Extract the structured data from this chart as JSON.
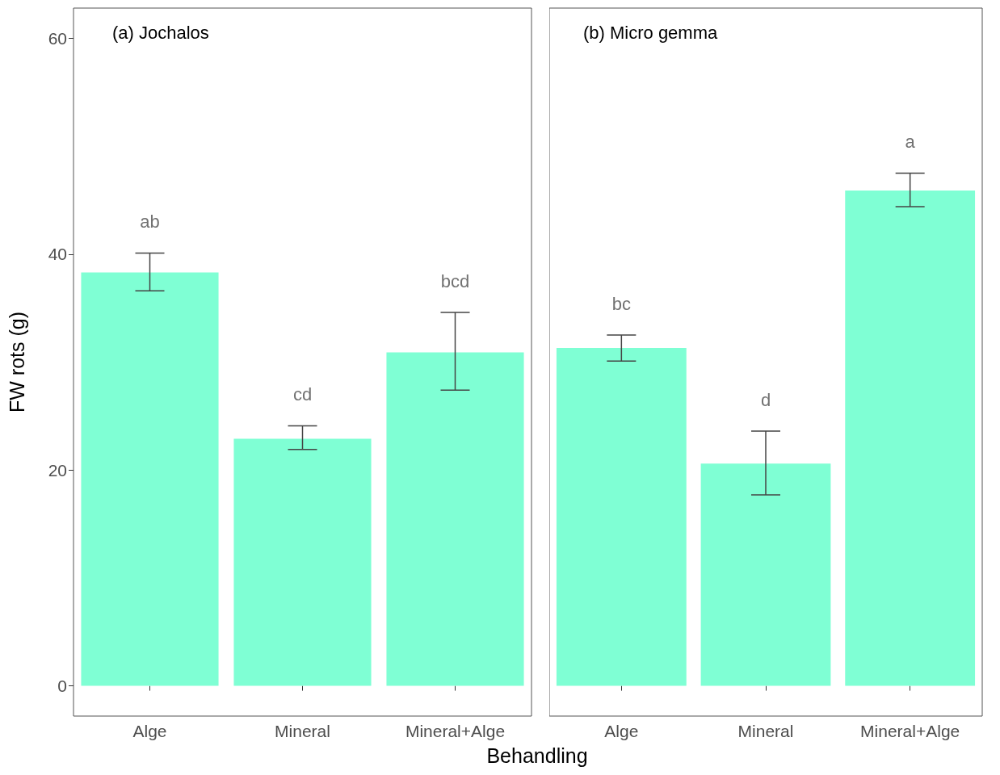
{
  "chart_data": [
    {
      "type": "bar",
      "title": "(a) Jochalos",
      "ylabel": "FW rots (g)",
      "xlabel": "Behandling",
      "categories": [
        "Alge",
        "Mineral",
        "Mineral+Alge"
      ],
      "values": [
        38.3,
        22.9,
        30.9
      ],
      "errors": [
        [
          36.6,
          40.1
        ],
        [
          21.9,
          24.1
        ],
        [
          27.4,
          34.6
        ]
      ],
      "color": "#7fffd4",
      "ylim": [
        -2.8,
        62.8
      ],
      "yticks": [
        0,
        20,
        40,
        60
      ],
      "grid": false,
      "annotations": [
        "ab",
        "cd",
        "bcd"
      ]
    },
    {
      "type": "bar",
      "title": "(b) Micro gemma",
      "categories": [
        "Alge",
        "Mineral",
        "Mineral+Alge"
      ],
      "values": [
        31.3,
        20.6,
        45.9
      ],
      "errors": [
        [
          30.1,
          32.5
        ],
        [
          17.7,
          23.6
        ],
        [
          44.4,
          47.5
        ]
      ],
      "color": "#7fffd4",
      "ylim": [
        -2.8,
        62.8
      ],
      "yticks": [
        0,
        20,
        40,
        60
      ],
      "grid": false,
      "tick_labels": "x",
      "annotations": [
        "bc",
        "d",
        "a"
      ]
    }
  ]
}
